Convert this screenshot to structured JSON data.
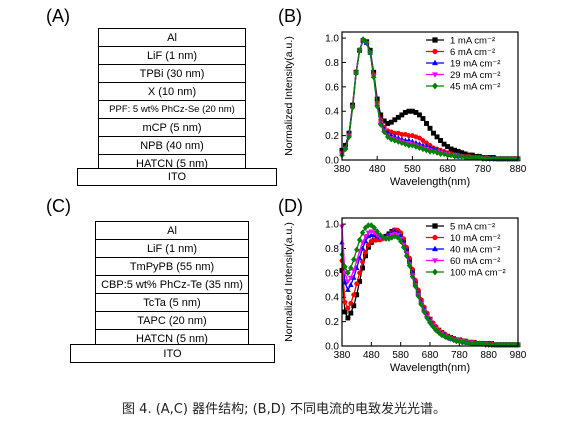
{
  "panels": {
    "A": {
      "label": "(A)",
      "layers": [
        "Al",
        "LiF (1 nm)",
        "TPBi (30 nm)",
        "X (10 nm)",
        "PPF: 5 wt% PhCz-Se (20 nm)",
        "mCP (5 nm)",
        "NPB (40 nm)",
        "HATCN (5 nm)",
        "ITO"
      ]
    },
    "C": {
      "label": "(C)",
      "layers": [
        "Al",
        "LiF (1 nm)",
        "TmPyPB (55 nm)",
        "CBP:5 wt% PhCz-Te (35 nm)",
        "TcTa (5 nm)",
        "TAPC (20 nm)",
        "HATCN (5 nm)",
        "ITO"
      ]
    },
    "B": {
      "label": "(B)"
    },
    "D": {
      "label": "(D)"
    }
  },
  "caption": "图 4. (A,C) 器件结构; (B,D) 不同电流的电致发光光谱。",
  "chart_data": [
    {
      "type": "line",
      "panel": "B",
      "xlabel": "Wavelength(nm)",
      "ylabel": "Normalized Intensity(a.u.)",
      "xlim": [
        380,
        880
      ],
      "ylim": [
        0,
        1.05
      ],
      "xticks": [
        380,
        480,
        580,
        680,
        780,
        880
      ],
      "yticks": [
        0.0,
        0.2,
        0.4,
        0.6,
        0.8,
        1.0
      ],
      "legend_position": "top-right",
      "x": [
        380,
        390,
        400,
        410,
        420,
        430,
        440,
        450,
        460,
        470,
        480,
        490,
        500,
        510,
        520,
        530,
        540,
        550,
        560,
        570,
        580,
        590,
        600,
        610,
        620,
        630,
        640,
        650,
        660,
        670,
        680,
        690,
        700,
        710,
        720,
        730,
        740,
        750,
        760,
        770,
        780,
        790,
        800,
        810,
        820,
        830,
        840,
        850,
        860,
        870,
        880
      ],
      "series": [
        {
          "name": "1 mA cm⁻²",
          "color": "#000000",
          "marker": "square",
          "values": [
            0.08,
            0.12,
            0.22,
            0.45,
            0.72,
            0.9,
            0.98,
            0.97,
            0.9,
            0.72,
            0.5,
            0.37,
            0.32,
            0.3,
            0.31,
            0.33,
            0.35,
            0.37,
            0.39,
            0.4,
            0.4,
            0.39,
            0.37,
            0.34,
            0.3,
            0.26,
            0.22,
            0.19,
            0.16,
            0.13,
            0.11,
            0.09,
            0.08,
            0.07,
            0.06,
            0.05,
            0.04,
            0.04,
            0.03,
            0.03,
            0.02,
            0.02,
            0.02,
            0.02,
            0.01,
            0.01,
            0.01,
            0.01,
            0.01,
            0.01,
            0.01
          ]
        },
        {
          "name": "6 mA cm⁻²",
          "color": "#ff0000",
          "marker": "circle",
          "values": [
            0.06,
            0.1,
            0.2,
            0.44,
            0.72,
            0.9,
            0.98,
            0.96,
            0.88,
            0.7,
            0.47,
            0.33,
            0.27,
            0.24,
            0.23,
            0.22,
            0.22,
            0.21,
            0.21,
            0.2,
            0.2,
            0.19,
            0.18,
            0.16,
            0.14,
            0.12,
            0.1,
            0.09,
            0.08,
            0.07,
            0.06,
            0.05,
            0.04,
            0.04,
            0.03,
            0.03,
            0.03,
            0.02,
            0.02,
            0.02,
            0.02,
            0.02,
            0.01,
            0.01,
            0.01,
            0.01,
            0.01,
            0.01,
            0.01,
            0.01,
            0.01
          ]
        },
        {
          "name": "19 mA cm⁻²",
          "color": "#0000ff",
          "marker": "triangle-up",
          "values": [
            0.05,
            0.1,
            0.2,
            0.44,
            0.72,
            0.9,
            0.98,
            0.96,
            0.88,
            0.69,
            0.46,
            0.31,
            0.25,
            0.22,
            0.2,
            0.19,
            0.18,
            0.17,
            0.16,
            0.16,
            0.15,
            0.14,
            0.13,
            0.12,
            0.11,
            0.1,
            0.09,
            0.08,
            0.07,
            0.06,
            0.05,
            0.04,
            0.04,
            0.03,
            0.03,
            0.03,
            0.02,
            0.02,
            0.02,
            0.02,
            0.02,
            0.01,
            0.01,
            0.01,
            0.01,
            0.01,
            0.01,
            0.01,
            0.01,
            0.01,
            0.01
          ]
        },
        {
          "name": "29 mA cm⁻²",
          "color": "#ff00ff",
          "marker": "triangle-down",
          "values": [
            0.05,
            0.09,
            0.2,
            0.43,
            0.71,
            0.9,
            0.98,
            0.96,
            0.88,
            0.69,
            0.45,
            0.3,
            0.24,
            0.2,
            0.18,
            0.17,
            0.16,
            0.15,
            0.14,
            0.14,
            0.13,
            0.12,
            0.11,
            0.1,
            0.09,
            0.08,
            0.07,
            0.07,
            0.06,
            0.05,
            0.05,
            0.04,
            0.04,
            0.03,
            0.03,
            0.02,
            0.02,
            0.02,
            0.02,
            0.02,
            0.01,
            0.01,
            0.01,
            0.01,
            0.01,
            0.01,
            0.01,
            0.01,
            0.01,
            0.01,
            0.01
          ]
        },
        {
          "name": "45 mA cm⁻²",
          "color": "#008000",
          "marker": "diamond",
          "values": [
            0.04,
            0.09,
            0.19,
            0.43,
            0.71,
            0.9,
            0.99,
            0.96,
            0.88,
            0.68,
            0.44,
            0.29,
            0.23,
            0.19,
            0.17,
            0.16,
            0.15,
            0.14,
            0.13,
            0.12,
            0.12,
            0.11,
            0.1,
            0.09,
            0.08,
            0.07,
            0.07,
            0.06,
            0.05,
            0.05,
            0.04,
            0.04,
            0.03,
            0.03,
            0.03,
            0.02,
            0.02,
            0.02,
            0.02,
            0.02,
            0.01,
            0.01,
            0.01,
            0.01,
            0.01,
            0.01,
            0.01,
            0.01,
            0.01,
            0.01,
            0.01
          ]
        }
      ]
    },
    {
      "type": "line",
      "panel": "D",
      "xlabel": "Wavelength(nm)",
      "ylabel": "Normalized Intensity(a.u.)",
      "xlim": [
        380,
        980
      ],
      "ylim": [
        0,
        1.05
      ],
      "xticks": [
        380,
        480,
        580,
        680,
        780,
        880,
        980
      ],
      "yticks": [
        0.0,
        0.2,
        0.4,
        0.6,
        0.8,
        1.0
      ],
      "legend_position": "top-right",
      "x": [
        380,
        390,
        400,
        410,
        420,
        430,
        440,
        450,
        460,
        470,
        480,
        490,
        500,
        510,
        520,
        530,
        540,
        550,
        560,
        570,
        580,
        590,
        600,
        610,
        620,
        630,
        640,
        650,
        660,
        670,
        680,
        690,
        700,
        710,
        720,
        730,
        740,
        750,
        760,
        770,
        780,
        790,
        800,
        810,
        820,
        830,
        840,
        850,
        860,
        870,
        880,
        890,
        900,
        910,
        920,
        930,
        940,
        950,
        960,
        970,
        980
      ],
      "series": [
        {
          "name": "5 mA cm⁻²",
          "color": "#000000",
          "marker": "square",
          "values": [
            0.62,
            0.28,
            0.23,
            0.27,
            0.33,
            0.42,
            0.53,
            0.64,
            0.74,
            0.81,
            0.85,
            0.87,
            0.88,
            0.88,
            0.89,
            0.9,
            0.92,
            0.94,
            0.95,
            0.94,
            0.91,
            0.86,
            0.79,
            0.7,
            0.61,
            0.52,
            0.44,
            0.37,
            0.31,
            0.26,
            0.22,
            0.18,
            0.15,
            0.13,
            0.11,
            0.09,
            0.08,
            0.07,
            0.06,
            0.05,
            0.05,
            0.04,
            0.04,
            0.03,
            0.03,
            0.03,
            0.02,
            0.02,
            0.02,
            0.02,
            0.02,
            0.02,
            0.01,
            0.01,
            0.01,
            0.01,
            0.01,
            0.01,
            0.01,
            0.01,
            0.01
          ]
        },
        {
          "name": "10 mA cm⁻²",
          "color": "#ff0000",
          "marker": "circle",
          "values": [
            0.7,
            0.36,
            0.31,
            0.35,
            0.42,
            0.51,
            0.6,
            0.69,
            0.77,
            0.83,
            0.86,
            0.87,
            0.87,
            0.87,
            0.88,
            0.89,
            0.91,
            0.93,
            0.95,
            0.95,
            0.93,
            0.88,
            0.81,
            0.72,
            0.63,
            0.54,
            0.46,
            0.38,
            0.32,
            0.27,
            0.22,
            0.19,
            0.16,
            0.13,
            0.11,
            0.1,
            0.08,
            0.07,
            0.06,
            0.05,
            0.05,
            0.04,
            0.04,
            0.03,
            0.03,
            0.03,
            0.02,
            0.02,
            0.02,
            0.02,
            0.02,
            0.02,
            0.01,
            0.01,
            0.01,
            0.01,
            0.01,
            0.01,
            0.01,
            0.01,
            0.01
          ]
        },
        {
          "name": "40 mA cm⁻²",
          "color": "#0000ff",
          "marker": "triangle-up",
          "values": [
            0.85,
            0.52,
            0.46,
            0.5,
            0.56,
            0.64,
            0.72,
            0.8,
            0.86,
            0.9,
            0.91,
            0.91,
            0.9,
            0.89,
            0.89,
            0.9,
            0.91,
            0.93,
            0.94,
            0.93,
            0.9,
            0.85,
            0.78,
            0.69,
            0.6,
            0.51,
            0.43,
            0.36,
            0.3,
            0.25,
            0.21,
            0.17,
            0.14,
            0.12,
            0.1,
            0.09,
            0.07,
            0.06,
            0.06,
            0.05,
            0.04,
            0.04,
            0.03,
            0.03,
            0.03,
            0.02,
            0.02,
            0.02,
            0.02,
            0.02,
            0.02,
            0.01,
            0.01,
            0.01,
            0.01,
            0.01,
            0.01,
            0.01,
            0.01,
            0.01,
            0.01
          ]
        },
        {
          "name": "60 mA cm⁻²",
          "color": "#ff00ff",
          "marker": "triangle-down",
          "values": [
            0.98,
            0.6,
            0.53,
            0.56,
            0.62,
            0.7,
            0.78,
            0.85,
            0.9,
            0.93,
            0.94,
            0.93,
            0.91,
            0.89,
            0.88,
            0.88,
            0.89,
            0.91,
            0.92,
            0.91,
            0.88,
            0.83,
            0.76,
            0.67,
            0.58,
            0.5,
            0.42,
            0.35,
            0.29,
            0.24,
            0.2,
            0.17,
            0.14,
            0.12,
            0.1,
            0.08,
            0.07,
            0.06,
            0.05,
            0.05,
            0.04,
            0.04,
            0.03,
            0.03,
            0.03,
            0.02,
            0.02,
            0.02,
            0.02,
            0.02,
            0.01,
            0.01,
            0.01,
            0.01,
            0.01,
            0.01,
            0.01,
            0.01,
            0.01,
            0.01,
            0.01
          ]
        },
        {
          "name": "100 mA cm⁻²",
          "color": "#008000",
          "marker": "diamond",
          "values": [
            0.75,
            0.65,
            0.6,
            0.64,
            0.71,
            0.79,
            0.87,
            0.93,
            0.97,
            0.99,
            0.99,
            0.97,
            0.94,
            0.91,
            0.89,
            0.88,
            0.88,
            0.89,
            0.9,
            0.89,
            0.86,
            0.81,
            0.74,
            0.66,
            0.57,
            0.49,
            0.41,
            0.34,
            0.28,
            0.23,
            0.19,
            0.16,
            0.13,
            0.11,
            0.09,
            0.08,
            0.07,
            0.06,
            0.05,
            0.04,
            0.04,
            0.03,
            0.03,
            0.03,
            0.02,
            0.02,
            0.02,
            0.02,
            0.02,
            0.01,
            0.01,
            0.01,
            0.01,
            0.01,
            0.01,
            0.01,
            0.01,
            0.01,
            0.01,
            0.01,
            0.01
          ]
        }
      ]
    }
  ]
}
